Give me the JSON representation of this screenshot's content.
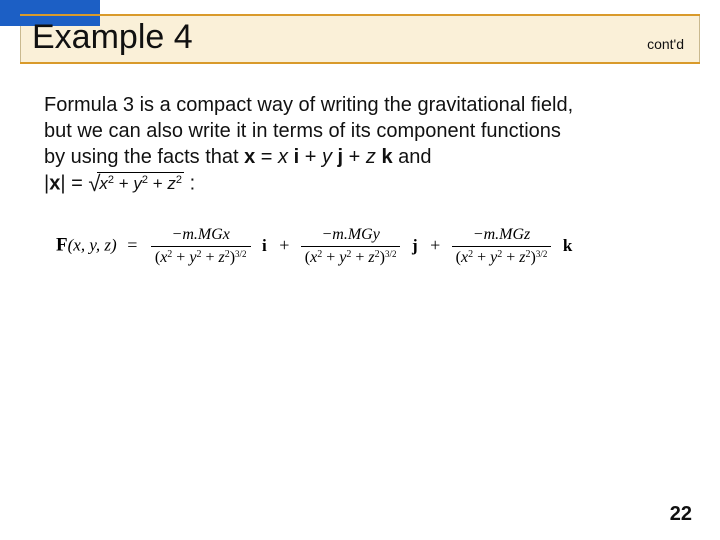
{
  "header": {
    "title": "Example 4",
    "contd": "cont'd",
    "colors": {
      "blue_block": "#1c5fc5",
      "cream_band": "#faf0d8",
      "orange_line": "#d99a2b"
    }
  },
  "body": {
    "line1": "Formula 3 is a compact way of writing the gravitational field,",
    "line2": "but we can also write it in terms of its component functions",
    "line3_a": "by using the facts that ",
    "line3_x": "x",
    "line3_eq": " = ",
    "line3_xi": "x ",
    "line3_i": "i",
    "line3_plus1": " + ",
    "line3_yj_y": "y ",
    "line3_j": "j",
    "line3_plus2": " + ",
    "line3_zk_z": "z ",
    "line3_k": "k",
    "line3_and": " and",
    "line4_a": "|",
    "line4_x": "x",
    "line4_b": "| = ",
    "sqrt_expr_x2": "x",
    "sqrt_expr_y2": "y",
    "sqrt_expr_z2": "z",
    "sqrt_plus": " + ",
    "line4_colon": " :"
  },
  "formula": {
    "F": "F",
    "args": "(x, y, z)",
    "eq": " = ",
    "num1": "−m.MGx",
    "num2": "−m.MGy",
    "num3": "−m.MGz",
    "den_open": "(",
    "den_x": "x",
    "den_y": "y",
    "den_z": "z",
    "den_plus": " + ",
    "den_close": ")",
    "den_exp": "3/2",
    "sq": "2",
    "i": "i",
    "j": "j",
    "k": "k",
    "plus": "+"
  },
  "page_number": "22"
}
